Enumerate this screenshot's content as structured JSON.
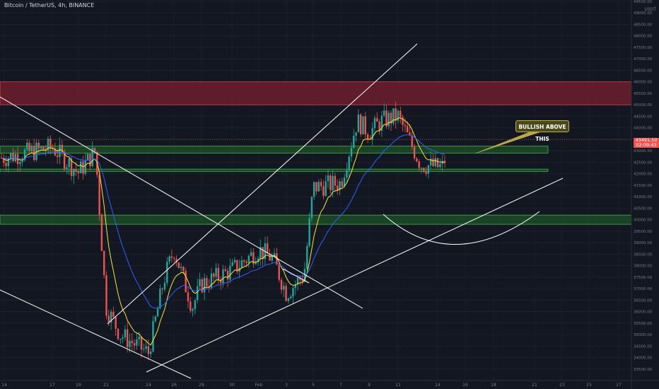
{
  "header": {
    "title": "Bitcoin / TetherUS, 4h, BINANCE",
    "currency": "USDT"
  },
  "price_tag": {
    "price": "43491.50",
    "countdown": "02:09:43"
  },
  "annotation": {
    "callout_text": "BULLISH ABOVE THIS"
  },
  "colors": {
    "background": "#131722",
    "candle_up": "#26a69a",
    "candle_down": "#ef5350",
    "ma_fast": "#f5e63b",
    "ma_slow": "#2962ff",
    "resistance_zone": "#7a1f2e",
    "support_zone": "#1e5a2a",
    "trend_lines": "#ffffff"
  },
  "chart_data": {
    "type": "candlestick",
    "title": "Bitcoin / TetherUS, 4h, BINANCE",
    "y_unit": "USDT",
    "ylim": [
      33000,
      49500
    ],
    "y_ticks": [
      33500,
      34000,
      34500,
      35000,
      35500,
      36000,
      36500,
      37000,
      37500,
      38000,
      38500,
      39000,
      39500,
      40000,
      40500,
      41000,
      41500,
      42000,
      42500,
      43000,
      43500,
      44000,
      44500,
      45000,
      45500,
      46000,
      46500,
      47000,
      47500,
      48000,
      48500,
      49000,
      49500
    ],
    "x_ticks": [
      "14",
      "17",
      "19",
      "21",
      "24",
      "26",
      "28",
      "30",
      "Feb",
      "3",
      "5",
      "7",
      "9",
      "11",
      "14",
      "16",
      "18",
      "21",
      "23",
      "25",
      "27"
    ],
    "anchor_points": [
      {
        "label": "14",
        "close": 42700
      },
      {
        "label": "17",
        "close": 43150
      },
      {
        "label": "19",
        "close": 42050
      },
      {
        "label": "20",
        "close": 43000
      },
      {
        "label": "21",
        "close": 36200
      },
      {
        "label": "22",
        "close": 35000
      },
      {
        "label": "24",
        "close": 34200
      },
      {
        "label": "25",
        "close": 37400
      },
      {
        "label": "26",
        "close": 38700
      },
      {
        "label": "27",
        "close": 36200
      },
      {
        "label": "28",
        "close": 37200
      },
      {
        "label": "30",
        "close": 37800
      },
      {
        "label": "Feb",
        "close": 38700
      },
      {
        "label": "2",
        "close": 38300
      },
      {
        "label": "3",
        "close": 36800
      },
      {
        "label": "4",
        "close": 37600
      },
      {
        "label": "5",
        "close": 41400
      },
      {
        "label": "6",
        "close": 41600
      },
      {
        "label": "7",
        "close": 44300
      },
      {
        "label": "8",
        "close": 43800
      },
      {
        "label": "9",
        "close": 44300
      },
      {
        "label": "10",
        "close": 44500
      },
      {
        "label": "11",
        "close": 42400
      },
      {
        "label": "12",
        "close": 42300
      },
      {
        "label": "13",
        "close": 42300
      },
      {
        "label": "14",
        "close": 43491.5
      }
    ],
    "zones": [
      {
        "name": "resistance",
        "low": 45000,
        "high": 46000
      },
      {
        "name": "support-upper",
        "low": 42900,
        "high": 43200
      },
      {
        "name": "support-lower",
        "low": 42100,
        "high": 42200
      },
      {
        "name": "support-bottom",
        "low": 39800,
        "high": 40200
      }
    ],
    "indicators": [
      "fast moving average (yellow)",
      "slow moving average (blue)"
    ],
    "grid": true
  }
}
